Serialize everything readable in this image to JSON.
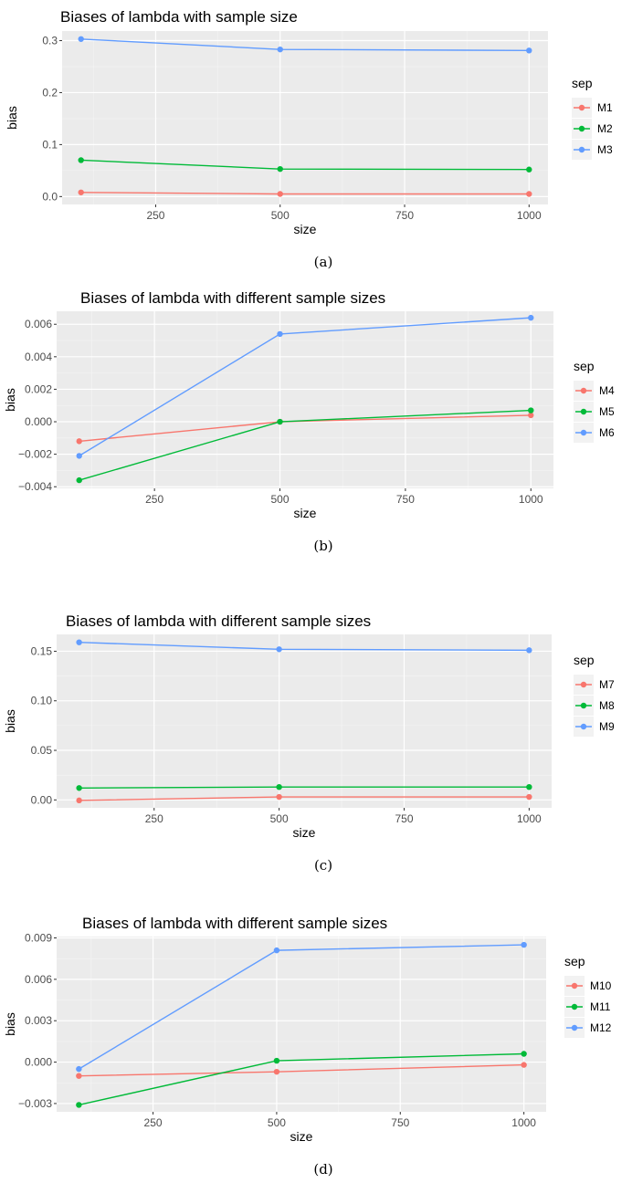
{
  "chart_data": [
    {
      "type": "line",
      "title": "Biases of lambda with sample size",
      "xlabel": "size",
      "ylabel": "bias",
      "caption": "(a)",
      "x": [
        100,
        500,
        1000
      ],
      "xlim": [
        62,
        1038
      ],
      "xticks": [
        250,
        500,
        750,
        1000
      ],
      "ylim": [
        -0.0152,
        0.3184
      ],
      "yticks": [
        0.0,
        0.1,
        0.2,
        0.3
      ],
      "ytick_labels": [
        "0.0",
        "0.1",
        "0.2",
        "0.3"
      ],
      "legend": {
        "title": "sep",
        "placement": "right"
      },
      "series": [
        {
          "name": "M1",
          "color": "#F8766D",
          "values": [
            0.008,
            0.005,
            0.005
          ]
        },
        {
          "name": "M2",
          "color": "#00BA38",
          "values": [
            0.07,
            0.053,
            0.052
          ]
        },
        {
          "name": "M3",
          "color": "#619CFF",
          "values": [
            0.303,
            0.283,
            0.281
          ]
        }
      ]
    },
    {
      "type": "line",
      "title": "Biases of lambda with different sample sizes",
      "xlabel": "size",
      "ylabel": "bias",
      "caption": "(b)",
      "x": [
        100,
        500,
        1000
      ],
      "xlim": [
        55,
        1045
      ],
      "xticks": [
        250,
        500,
        750,
        1000
      ],
      "ylim": [
        -0.0041,
        0.0068
      ],
      "yticks": [
        -0.004,
        -0.002,
        0.0,
        0.002,
        0.004,
        0.006
      ],
      "ytick_labels": [
        "−0.004",
        "−0.002",
        "0.000",
        "0.002",
        "0.004",
        "0.006"
      ],
      "legend": {
        "title": "sep",
        "placement": "right"
      },
      "series": [
        {
          "name": "M4",
          "color": "#F8766D",
          "values": [
            -0.0012,
            0.0,
            0.0004
          ]
        },
        {
          "name": "M5",
          "color": "#00BA38",
          "values": [
            -0.0036,
            0.0,
            0.0007
          ]
        },
        {
          "name": "M6",
          "color": "#619CFF",
          "values": [
            -0.0021,
            0.0054,
            0.0064
          ]
        }
      ]
    },
    {
      "type": "line",
      "title": "Biases of lambda with different sample sizes",
      "xlabel": "size",
      "ylabel": "bias",
      "caption": "(c)",
      "x": [
        100,
        500,
        1000
      ],
      "xlim": [
        55,
        1045
      ],
      "xticks": [
        250,
        500,
        750,
        1000
      ],
      "ylim": [
        -0.008,
        0.167
      ],
      "yticks": [
        0.0,
        0.05,
        0.1,
        0.15
      ],
      "ytick_labels": [
        "0.00",
        "0.05",
        "0.10",
        "0.15"
      ],
      "legend": {
        "title": "sep",
        "placement": "right"
      },
      "series": [
        {
          "name": "M7",
          "color": "#F8766D",
          "values": [
            -0.0005,
            0.003,
            0.003
          ]
        },
        {
          "name": "M8",
          "color": "#00BA38",
          "values": [
            0.012,
            0.013,
            0.013
          ]
        },
        {
          "name": "M9",
          "color": "#619CFF",
          "values": [
            0.159,
            0.152,
            0.151
          ]
        }
      ]
    },
    {
      "type": "line",
      "title": "Biases of lambda with different sample sizes",
      "xlabel": "size",
      "ylabel": "bias",
      "caption": "(d)",
      "x": [
        100,
        500,
        1000
      ],
      "xlim": [
        55,
        1045
      ],
      "xticks": [
        250,
        500,
        750,
        1000
      ],
      "ylim": [
        -0.0036,
        0.0091
      ],
      "yticks": [
        -0.003,
        0.0,
        0.003,
        0.006,
        0.009
      ],
      "ytick_labels": [
        "−0.003",
        "0.000",
        "0.003",
        "0.006",
        "0.009"
      ],
      "legend": {
        "title": "sep",
        "placement": "right"
      },
      "series": [
        {
          "name": "M10",
          "color": "#F8766D",
          "values": [
            -0.001,
            -0.0007,
            -0.0002
          ]
        },
        {
          "name": "M11",
          "color": "#00BA38",
          "values": [
            -0.0031,
            0.0001,
            0.0006
          ]
        },
        {
          "name": "M12",
          "color": "#619CFF",
          "values": [
            -0.0005,
            0.0081,
            0.0085
          ]
        }
      ]
    }
  ]
}
